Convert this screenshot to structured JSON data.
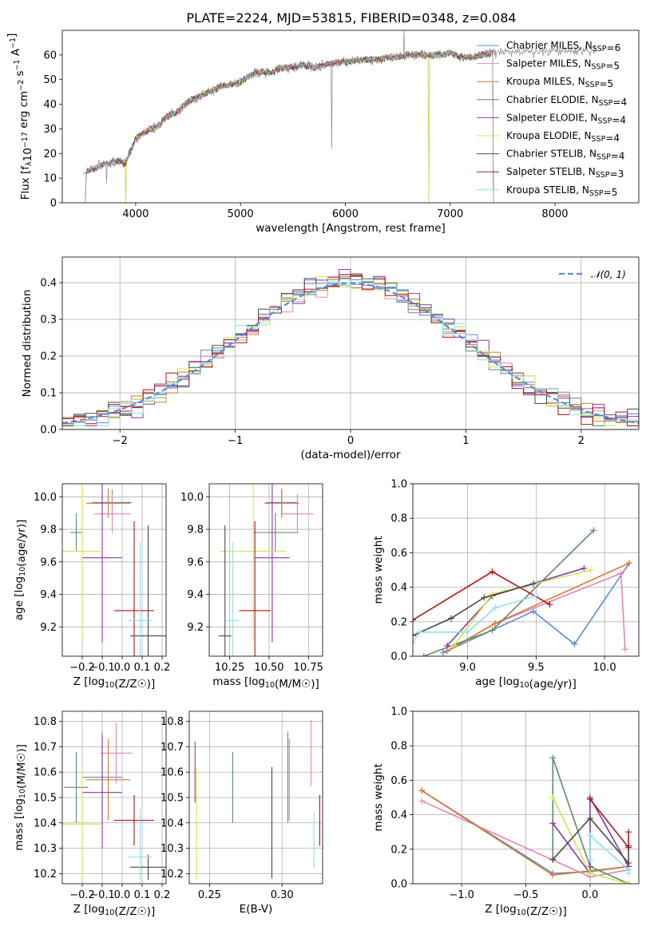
{
  "chart_data": [
    {
      "type": "line",
      "title": "PLATE=2224, MJD=53815, FIBERID=0348, z=0.084",
      "xlabel": "wavelength [Angstrom, rest frame]",
      "ylabel": "Flux [f_λ10^-17 erg cm^-2 s^-1 A^-1]",
      "xlim": [
        3300,
        8800
      ],
      "ylim": [
        0,
        70
      ],
      "xticks": [
        "4000",
        "5000",
        "6000",
        "7000",
        "8000"
      ],
      "yticks": [
        "0",
        "10",
        "20",
        "30",
        "40",
        "50",
        "60"
      ],
      "grid": false,
      "legend_position": "upper right",
      "series": [
        {
          "name": "Chabrier MILES, N_SSP=6",
          "color": "#5b8bd6"
        },
        {
          "name": "Salpeter MILES, N_SSP=5",
          "color": "#e683b7"
        },
        {
          "name": "Kroupa MILES, N_SSP=5",
          "color": "#d97a2b"
        },
        {
          "name": "Chabrier ELODIE, N_SSP=4",
          "color": "#5f8a6a"
        },
        {
          "name": "Salpeter ELODIE, N_SSP=4",
          "color": "#8e35a8"
        },
        {
          "name": "Kroupa ELODIE, N_SSP=4",
          "color": "#cce84a"
        },
        {
          "name": "Chabrier STELIB, N_SSP=4",
          "color": "#4a4a4a"
        },
        {
          "name": "Salpeter STELIB, N_SSP=3",
          "color": "#b01515"
        },
        {
          "name": "Kroupa STELIB, N_SSP=5",
          "color": "#8ee0e8"
        }
      ],
      "continuum": {
        "x": [
          3500,
          3550,
          3650,
          3800,
          3900,
          4000,
          4100,
          4200,
          4300,
          4400,
          4500,
          4600,
          4700,
          4800,
          4900,
          5000,
          5100,
          5200,
          5300,
          5400,
          5500,
          5600,
          5700,
          5800,
          5900,
          6000,
          6100,
          6200,
          6300,
          6400,
          6500,
          6600,
          6700,
          6800,
          6900,
          7000,
          7100,
          7200,
          7300,
          7400
        ],
        "y": [
          12,
          13,
          15,
          17,
          16,
          26,
          29,
          31,
          35,
          37,
          41,
          43,
          45,
          47,
          48,
          49,
          52,
          53,
          53,
          55,
          55,
          56,
          55,
          56,
          57,
          57,
          58,
          58,
          58,
          59,
          59,
          60,
          60,
          60,
          60,
          61,
          59,
          59,
          60,
          61
        ]
      },
      "spikes": [
        {
          "x": 3720,
          "low": 8
        },
        {
          "x": 5870,
          "low": 22
        },
        {
          "x": 6560,
          "high": 70
        }
      ],
      "cutoffs": [
        3520,
        3905,
        6795,
        7420
      ]
    },
    {
      "type": "histogram",
      "xlabel": "(data-model)/error",
      "ylabel": "Normed distribution",
      "xlim": [
        -2.5,
        2.5
      ],
      "ylim": [
        0,
        0.47
      ],
      "xticks": [
        "−2",
        "−1",
        "0",
        "1",
        "2"
      ],
      "yticks": [
        "0.0",
        "0.1",
        "0.2",
        "0.3",
        "0.4"
      ],
      "grid": true,
      "legend_position": "upper right",
      "legend_label": "𝒩(0, 1)",
      "reference_curve": {
        "name": "𝒩(0, 1)",
        "mean": 0,
        "sigma": 1,
        "color": "#5b8bd6"
      },
      "bin_width": 0.1
    },
    {
      "type": "scatter",
      "xlabel": "Z [log10(Z/Z☉)]",
      "ylabel": "age  [log10(age/yr)]",
      "xlim": [
        -0.3,
        0.22
      ],
      "ylim": [
        9.02,
        10.08
      ],
      "xticks": [
        "−0.2",
        "−0.1",
        "0.0",
        "0.1",
        "0.2"
      ],
      "yticks": [
        "9.2",
        "9.4",
        "9.6",
        "9.8",
        "10.0"
      ],
      "grid": true,
      "points": [
        {
          "series": "Chabrier MILES",
          "x": -0.05,
          "y": 9.965,
          "xerr": 0.1,
          "yerr": 0.08
        },
        {
          "series": "Salpeter MILES",
          "x": -0.05,
          "y": 9.895,
          "xerr": 0.09,
          "yerr": 0.12
        },
        {
          "series": "Kroupa MILES",
          "x": -0.07,
          "y": 9.96,
          "xerr": 0.11,
          "yerr": 0.09
        },
        {
          "series": "Chabrier ELODIE",
          "x": -0.23,
          "y": 9.78,
          "xerr": 0.03,
          "yerr": 0.12
        },
        {
          "series": "Salpeter ELODIE",
          "x": -0.1,
          "y": 9.625,
          "xerr": 0.1,
          "yerr": 0.52
        },
        {
          "series": "Kroupa ELODIE",
          "x": -0.2,
          "y": 9.665,
          "xerr": 0.1,
          "yerr": 0.55
        },
        {
          "series": "Chabrier STELIB",
          "x": 0.13,
          "y": 9.145,
          "xerr": 0.09,
          "yerr": 0.68
        },
        {
          "series": "Salpeter STELIB",
          "x": 0.06,
          "y": 9.3,
          "xerr": 0.1,
          "yerr": 0.55
        },
        {
          "series": "Kroupa STELIB",
          "x": 0.09,
          "y": 9.24,
          "xerr": 0.06,
          "yerr": 0.48
        }
      ]
    },
    {
      "type": "scatter",
      "xlabel": "mass [log10(M/M☉)]",
      "ylabel": "",
      "xlim": [
        10.12,
        10.84
      ],
      "ylim": [
        9.02,
        10.08
      ],
      "xticks": [
        "10.25",
        "10.50",
        "10.75"
      ],
      "yticks": [
        "9.2",
        "9.4",
        "9.6",
        "9.8",
        "10.0"
      ],
      "grid": true,
      "points": [
        {
          "series": "Chabrier MILES",
          "x": 10.58,
          "y": 9.965,
          "xerr": 0.1,
          "yerr": 0.08
        },
        {
          "series": "Salpeter MILES",
          "x": 10.68,
          "y": 9.895,
          "xerr": 0.1,
          "yerr": 0.12
        },
        {
          "series": "Kroupa MILES",
          "x": 10.58,
          "y": 9.96,
          "xerr": 0.11,
          "yerr": 0.09
        },
        {
          "series": "Chabrier ELODIE",
          "x": 10.54,
          "y": 9.78,
          "xerr": 0.14,
          "yerr": 0.12
        },
        {
          "series": "Salpeter ELODIE",
          "x": 10.52,
          "y": 9.625,
          "xerr": 0.11,
          "yerr": 0.52
        },
        {
          "series": "Kroupa ELODIE",
          "x": 10.4,
          "y": 9.665,
          "xerr": 0.21,
          "yerr": 0.55
        },
        {
          "series": "Chabrier STELIB",
          "x": 10.22,
          "y": 9.145,
          "xerr": 0.04,
          "yerr": 0.68
        },
        {
          "series": "Salpeter STELIB",
          "x": 10.41,
          "y": 9.3,
          "xerr": 0.1,
          "yerr": 0.55
        },
        {
          "series": "Kroupa STELIB",
          "x": 10.27,
          "y": 9.24,
          "xerr": 0.04,
          "yerr": 0.48
        }
      ]
    },
    {
      "type": "line",
      "xlabel": "age  [log10(age/yr)]",
      "ylabel": "mass weight",
      "xlim": [
        8.6,
        10.25
      ],
      "ylim": [
        0,
        1.0
      ],
      "xticks": [
        "9.0",
        "9.5",
        "10.0"
      ],
      "yticks": [
        "0.0",
        "0.2",
        "0.4",
        "0.6",
        "0.8",
        "1.0"
      ],
      "grid": true,
      "series": [
        {
          "name": "Chabrier MILES",
          "x": [
            8.82,
            9.48,
            9.78,
            10.18
          ],
          "y": [
            0.02,
            0.26,
            0.07,
            0.54
          ]
        },
        {
          "name": "Salpeter MILES",
          "x": [
            8.85,
            9.2,
            10.12,
            10.15
          ],
          "y": [
            0.03,
            0.19,
            0.48,
            0.04
          ]
        },
        {
          "name": "Kroupa MILES",
          "x": [
            8.85,
            9.2,
            10.18
          ],
          "y": [
            0.03,
            0.19,
            0.54
          ]
        },
        {
          "name": "Chabrier ELODIE",
          "x": [
            8.68,
            9.18,
            9.92
          ],
          "y": [
            0.0,
            0.15,
            0.73
          ]
        },
        {
          "name": "Salpeter ELODIE",
          "x": [
            8.85,
            9.18,
            9.85
          ],
          "y": [
            0.06,
            0.35,
            0.51
          ]
        },
        {
          "name": "Kroupa ELODIE",
          "x": [
            8.9,
            9.18,
            9.9
          ],
          "y": [
            0.06,
            0.36,
            0.5
          ]
        },
        {
          "name": "Chabrier STELIB",
          "x": [
            8.6,
            8.88,
            9.12,
            9.48
          ],
          "y": [
            0.12,
            0.22,
            0.34,
            0.42
          ]
        },
        {
          "name": "Salpeter STELIB",
          "x": [
            8.6,
            9.18,
            9.6
          ],
          "y": [
            0.21,
            0.49,
            0.3
          ]
        },
        {
          "name": "Kroupa STELIB",
          "x": [
            8.6,
            8.65,
            9.0,
            9.2,
            9.5
          ],
          "y": [
            0.08,
            0.14,
            0.14,
            0.28,
            0.35
          ]
        }
      ]
    },
    {
      "type": "scatter",
      "xlabel": "Z [log10(Z/Z☉)]",
      "ylabel": "mass [log10(M/M☉)]",
      "xlim": [
        -0.3,
        0.22
      ],
      "ylim": [
        10.16,
        10.84
      ],
      "xticks": [
        "−0.2",
        "−0.1",
        "0.0",
        "0.1",
        "0.2"
      ],
      "yticks": [
        "10.2",
        "10.3",
        "10.4",
        "10.5",
        "10.6",
        "10.7",
        "10.8"
      ],
      "grid": true,
      "points": [
        {
          "series": "Chabrier MILES",
          "x": -0.1,
          "y": 10.58,
          "xerr": 0.1,
          "yerr": 0.18
        },
        {
          "series": "Salpeter MILES",
          "x": -0.03,
          "y": 10.675,
          "xerr": 0.08,
          "yerr": 0.12
        },
        {
          "series": "Kroupa MILES",
          "x": -0.07,
          "y": 10.57,
          "xerr": 0.11,
          "yerr": 0.16
        },
        {
          "series": "Chabrier ELODIE",
          "x": -0.23,
          "y": 10.54,
          "xerr": 0.06,
          "yerr": 0.14
        },
        {
          "series": "Salpeter ELODIE",
          "x": -0.1,
          "y": 10.52,
          "xerr": 0.1,
          "yerr": 0.22
        },
        {
          "series": "Kroupa ELODIE",
          "x": -0.2,
          "y": 10.395,
          "xerr": 0.1,
          "yerr": 0.21
        },
        {
          "series": "Chabrier STELIB",
          "x": 0.13,
          "y": 10.225,
          "xerr": 0.09,
          "yerr": 0.05
        },
        {
          "series": "Salpeter STELIB",
          "x": 0.06,
          "y": 10.41,
          "xerr": 0.1,
          "yerr": 0.1
        },
        {
          "series": "Kroupa STELIB",
          "x": 0.09,
          "y": 10.265,
          "xerr": 0.06,
          "yerr": 0.19
        }
      ]
    },
    {
      "type": "scatter",
      "xlabel": "E(B-V)",
      "ylabel": "",
      "xlim": [
        0.236,
        0.328
      ],
      "ylim": [
        10.16,
        10.84
      ],
      "xticks": [
        "0.25",
        "0.30"
      ],
      "yticks": [
        "10.2",
        "10.3",
        "10.4",
        "10.5",
        "10.6",
        "10.7",
        "10.8"
      ],
      "grid": true,
      "points": [
        {
          "series": "Chabrier MILES",
          "x": 0.304,
          "y": 10.58,
          "yerr": 0.18
        },
        {
          "series": "Salpeter MILES",
          "x": 0.32,
          "y": 10.675,
          "yerr": 0.13
        },
        {
          "series": "Kroupa MILES",
          "x": 0.305,
          "y": 10.57,
          "yerr": 0.16
        },
        {
          "series": "Chabrier ELODIE",
          "x": 0.266,
          "y": 10.54,
          "yerr": 0.14
        },
        {
          "series": "Salpeter ELODIE",
          "x": 0.24,
          "y": 10.6,
          "yerr": 0.12
        },
        {
          "series": "Kroupa ELODIE",
          "x": 0.241,
          "y": 10.395,
          "yerr": 0.22
        },
        {
          "series": "Chabrier STELIB",
          "x": 0.293,
          "y": 10.4,
          "yerr": 0.22
        },
        {
          "series": "Salpeter STELIB",
          "x": 0.326,
          "y": 10.41,
          "yerr": 0.1
        },
        {
          "series": "Kroupa STELIB",
          "x": 0.322,
          "y": 10.33,
          "yerr": 0.11
        }
      ]
    },
    {
      "type": "line",
      "xlabel": "Z [log10(Z/Z☉)]",
      "ylabel": "mass weight",
      "xlim": [
        -1.38,
        0.38
      ],
      "ylim": [
        0,
        1.0
      ],
      "xticks": [
        "−1.0",
        "−0.5",
        "0.0"
      ],
      "yticks": [
        "0.0",
        "0.2",
        "0.4",
        "0.6",
        "0.8",
        "1.0"
      ],
      "grid": true,
      "series": [
        {
          "name": "Chabrier MILES",
          "x": [
            -1.31,
            -0.29,
            0.0,
            0.3
          ],
          "y": [
            0.54,
            0.06,
            0.07,
            0.1
          ]
        },
        {
          "name": "Salpeter MILES",
          "x": [
            -1.31,
            0.0,
            0.3
          ],
          "y": [
            0.48,
            0.04,
            0.08
          ]
        },
        {
          "name": "Kroupa MILES",
          "x": [
            -1.31,
            -0.29,
            0.3
          ],
          "y": [
            0.54,
            0.05,
            0.1
          ]
        },
        {
          "name": "Chabrier ELODIE",
          "x": [
            -0.29,
            -0.29,
            0.0,
            0.3
          ],
          "y": [
            0.14,
            0.73,
            0.1,
            0.0
          ]
        },
        {
          "name": "Salpeter ELODIE",
          "x": [
            -0.29,
            0.0,
            0.0,
            0.3
          ],
          "y": [
            0.35,
            0.06,
            0.5,
            0.1
          ]
        },
        {
          "name": "Kroupa ELODIE",
          "x": [
            -0.29,
            0.0,
            0.3
          ],
          "y": [
            0.5,
            0.06,
            0.0
          ]
        },
        {
          "name": "Chabrier STELIB",
          "x": [
            -0.29,
            0.0,
            0.3,
            0.3
          ],
          "y": [
            0.14,
            0.38,
            0.12,
            0.22
          ]
        },
        {
          "name": "Salpeter STELIB",
          "x": [
            0.0,
            0.3,
            0.3
          ],
          "y": [
            0.49,
            0.21,
            0.3
          ]
        },
        {
          "name": "Kroupa STELIB",
          "x": [
            0.0,
            0.0,
            0.3,
            0.3
          ],
          "y": [
            0.14,
            0.28,
            0.08,
            0.06
          ]
        }
      ]
    }
  ]
}
